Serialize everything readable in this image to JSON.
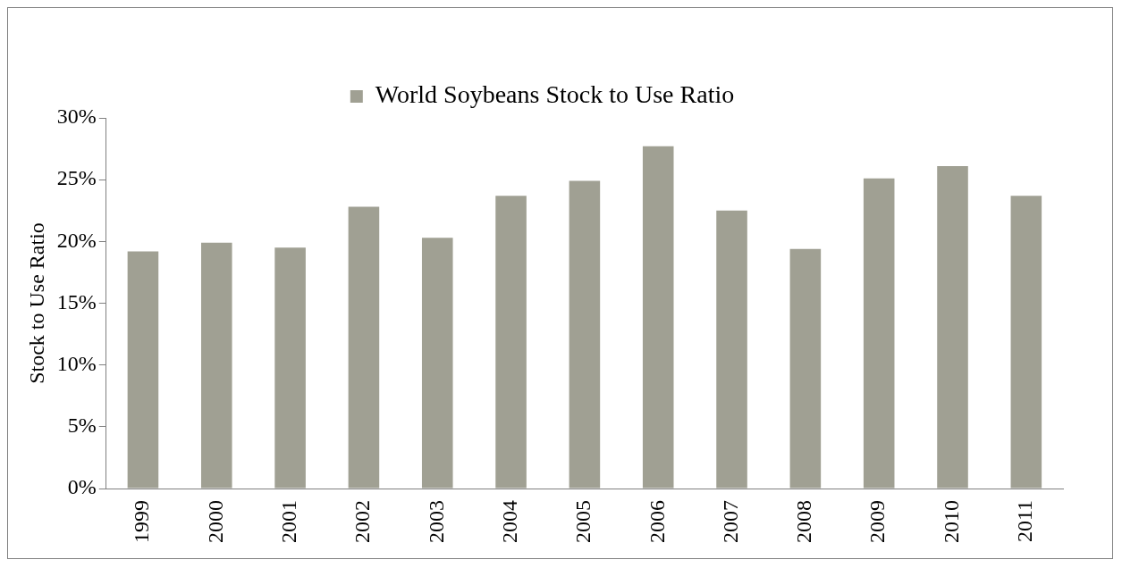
{
  "chart_data": {
    "type": "bar",
    "ylabel": "Stock to Use Ratio",
    "categories": [
      "1999",
      "2000",
      "2001",
      "2002",
      "2003",
      "2004",
      "2005",
      "2006",
      "2007",
      "2008",
      "2009",
      "2010",
      "2011"
    ],
    "series": [
      {
        "name": "World Soybeans Stock to Use Ratio",
        "color": "#a0a093",
        "values": [
          19.2,
          19.9,
          19.5,
          22.8,
          20.3,
          23.7,
          24.9,
          27.7,
          22.5,
          19.4,
          25.1,
          26.1,
          23.7
        ]
      }
    ],
    "ylim": [
      0,
      30
    ],
    "yticks": [
      {
        "value": 0,
        "label": "0%"
      },
      {
        "value": 5,
        "label": "5%"
      },
      {
        "value": 10,
        "label": "10%"
      },
      {
        "value": 15,
        "label": "15%"
      },
      {
        "value": 20,
        "label": "20%"
      },
      {
        "value": 25,
        "label": "25%"
      },
      {
        "value": 30,
        "label": "30%"
      }
    ],
    "grid": false,
    "legend": "top"
  }
}
